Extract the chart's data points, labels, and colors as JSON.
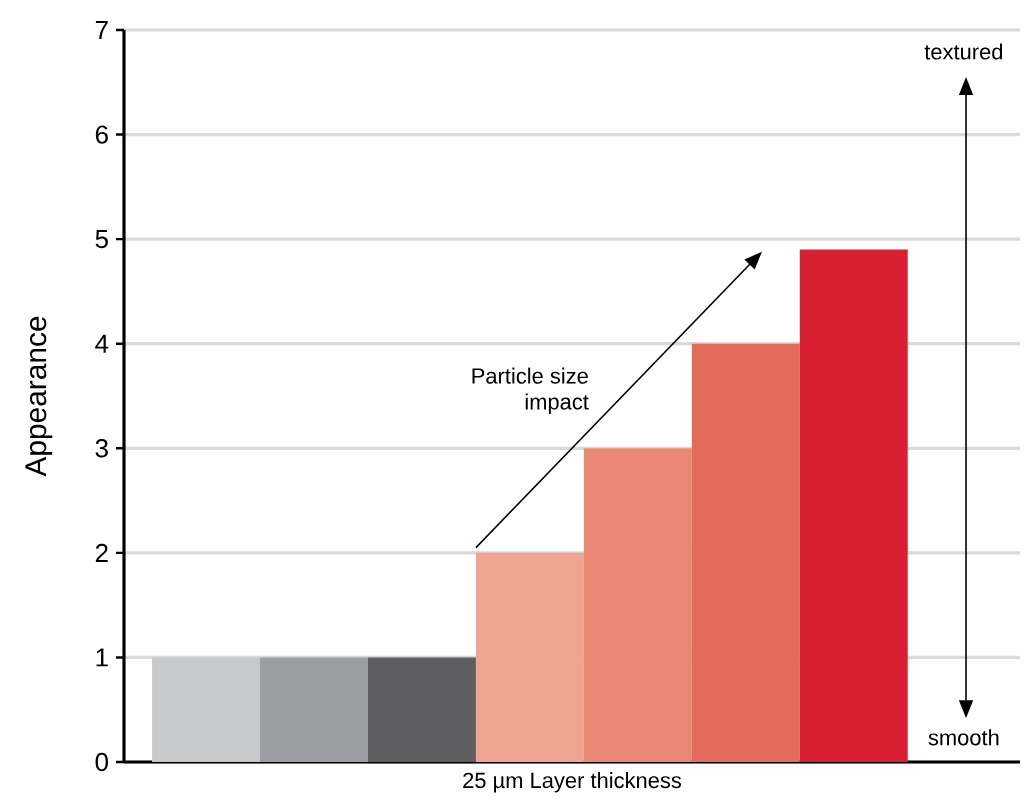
{
  "chart_data": {
    "type": "bar",
    "xlabel": "25 µm Layer thickness",
    "ylabel": "Appearance",
    "categories": [
      null,
      null,
      null,
      null,
      null,
      null,
      null
    ],
    "values": [
      1,
      1,
      1,
      2,
      3,
      4,
      4.9
    ],
    "colors": [
      "#c8c9cb",
      "#9d9ea1",
      "#5e5e61",
      "#eea592",
      "#e88875",
      "#e26b5b",
      "#d91f32"
    ],
    "ylim": [
      0,
      7
    ],
    "yticks": [
      0,
      1,
      2,
      3,
      4,
      5,
      6,
      7
    ],
    "grid": "y",
    "annotations": [
      "Particle size impact",
      "textured",
      "smooth"
    ]
  }
}
